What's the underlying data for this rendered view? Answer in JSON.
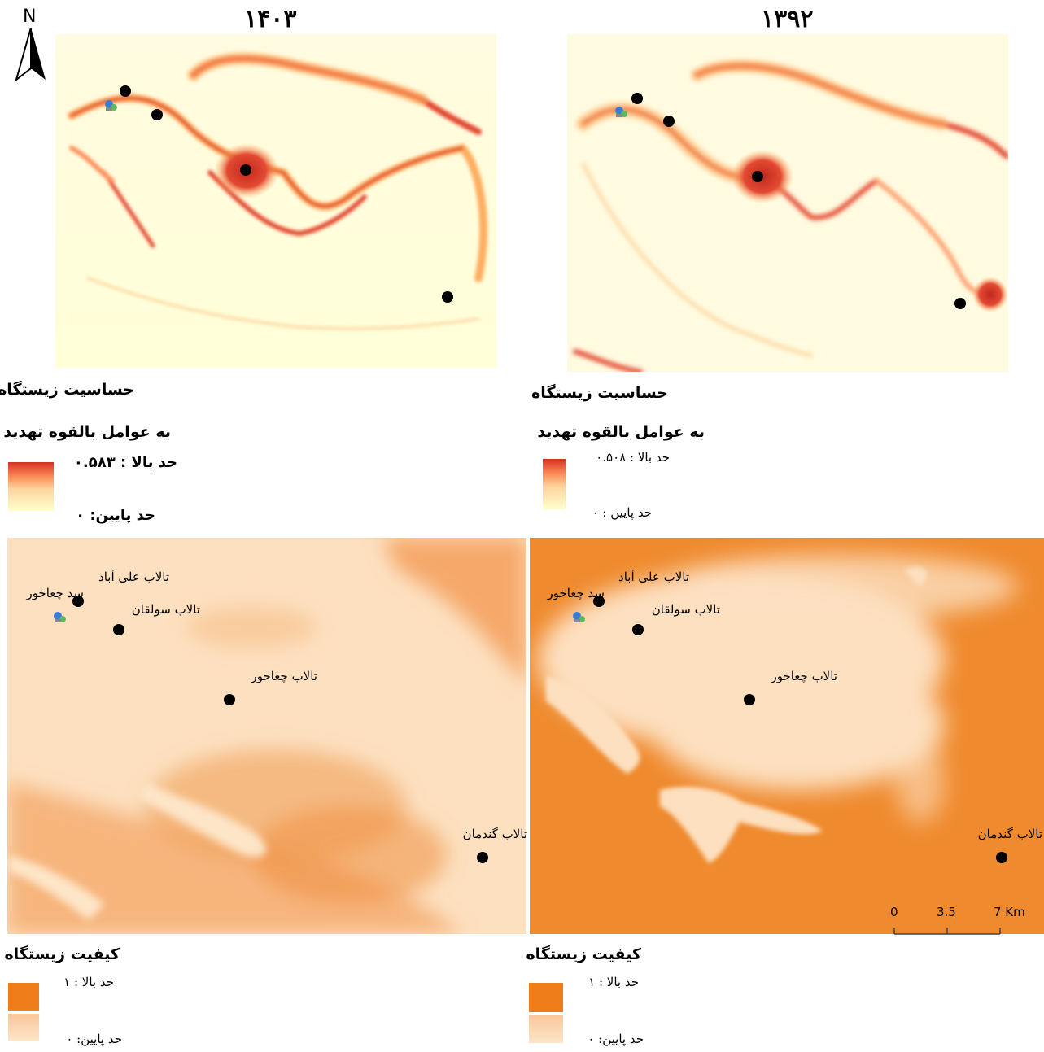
{
  "north_arrow": {
    "label": "N"
  },
  "years": {
    "left": "۱۴۰۳",
    "right": "۱۳۹۲"
  },
  "sensitivity_legend_left": {
    "title_line1": "حساسیت زیستگاه",
    "title_line2": "به عوامل بالقوه تهدید",
    "high": "حد بالا : ۰.۵۸۳",
    "low": "حد پایین: ۰",
    "colors": [
      "#d7301f",
      "#fdae61",
      "#ffffcc"
    ]
  },
  "sensitivity_legend_right": {
    "title_line1": "حساسیت زیستگاه",
    "title_line2": "به عوامل بالقوه تهدید",
    "high": "حد بالا : ۰.۵۰۸",
    "low": "حد پایین : ۰",
    "colors": [
      "#d7301f",
      "#fdae61",
      "#ffffcc"
    ]
  },
  "quality_legend_left": {
    "title": "کیفیت زیستگاه",
    "high": "حد بالا : ۱",
    "low": "حد پایین: ۰",
    "colors": [
      "#ef7d1a",
      "#fde0c0"
    ]
  },
  "quality_legend_right": {
    "title": "کیفیت زیستگاه",
    "high": "حد بالا : ۱",
    "low": "حد پایین: ۰",
    "colors": [
      "#ef7d1a",
      "#fde0c0"
    ]
  },
  "place_labels": {
    "ali_abad": "تالاب علی آباد",
    "choghakhor_dam": "سد چغاخور",
    "soulghan": "تالاب سولقان",
    "choghakhor": "تالاب چغاخور",
    "gandoman": "تالاب گندمان"
  },
  "scale_bar": {
    "ticks": [
      "0",
      "3.5",
      "7 Km"
    ]
  },
  "icons": {
    "site_marker": "dam-icon",
    "point_marker": "wetland-point-icon"
  }
}
